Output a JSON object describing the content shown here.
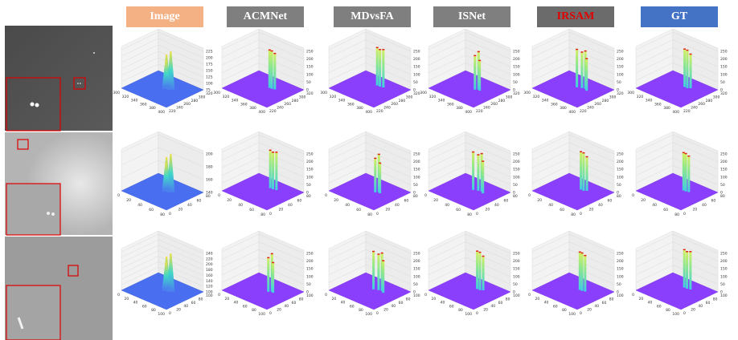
{
  "headers": [
    {
      "label": "Image"
    },
    {
      "label": "ACMNet"
    },
    {
      "label": "MDvsFA"
    },
    {
      "label": "ISNet"
    },
    {
      "label": "IRSAM"
    },
    {
      "label": "GT"
    }
  ],
  "rows": [
    {
      "image_plot": {
        "xticks": [
          300,
          320,
          340,
          360,
          380,
          400
        ],
        "yticks": [
          220,
          240,
          260,
          280,
          300,
          320
        ],
        "zticks": [
          75,
          100,
          125,
          150,
          175,
          200,
          225
        ]
      },
      "method_plot": {
        "xticks": [
          300,
          320,
          340,
          360,
          380,
          400
        ],
        "yticks": [
          220,
          240,
          260,
          280,
          300,
          320
        ],
        "zticks": [
          0,
          50,
          100,
          150,
          200,
          250
        ]
      }
    },
    {
      "image_plot": {
        "xticks": [
          0,
          20,
          40,
          60,
          80
        ],
        "yticks": [
          0,
          20,
          40,
          60,
          80
        ],
        "zticks": [
          140,
          160,
          180,
          200
        ]
      },
      "method_plot": {
        "xticks": [
          0,
          20,
          40,
          60,
          80
        ],
        "yticks": [
          0,
          20,
          40,
          60,
          80
        ],
        "zticks": [
          0,
          50,
          100,
          150,
          200,
          250
        ]
      }
    },
    {
      "image_plot": {
        "xticks": [
          0,
          20,
          40,
          60,
          80,
          100
        ],
        "yticks": [
          0,
          20,
          40,
          60,
          80,
          100
        ],
        "zticks": [
          100,
          120,
          140,
          160,
          180,
          200,
          220,
          240
        ]
      },
      "method_plot": {
        "xticks": [
          0,
          20,
          40,
          60,
          80,
          100
        ],
        "yticks": [
          0,
          20,
          40,
          60,
          80,
          100
        ],
        "zticks": [
          0,
          50,
          100,
          150,
          200,
          250
        ]
      }
    }
  ]
}
